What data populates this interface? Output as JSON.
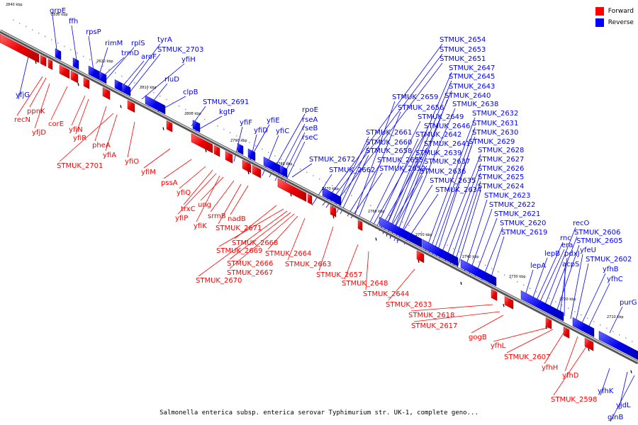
{
  "legend": {
    "forward_label": "Forward",
    "reverse_label": "Reverse",
    "forward_color": "#ff0000",
    "reverse_color": "#0000ff"
  },
  "caption": "Salmonella enterica subsp. enterica serovar Typhimurium str. UK-1, complete geno...",
  "ticks": [
    "2840 kbp",
    "2830 kbp",
    "2820 kbp",
    "2810 kbp",
    "2800 kbp",
    "2790 kbp",
    "2780 kbp",
    "2770 kbp",
    "2760 kbp",
    "2750 kbp",
    "2740 kbp",
    "2730 kbp",
    "2720 kbp",
    "2710 kbp"
  ],
  "reverse_genes": [
    "grpE",
    "ffh",
    "rpsP",
    "rimM",
    "trmD",
    "rplS",
    "aroF",
    "tyrA",
    "STMUK_2703",
    "yfiH",
    "rluD",
    "clpB",
    "STMUK_2691",
    "kgtP",
    "yfiF",
    "yfiE",
    "yfiD",
    "yfiC",
    "rpoE",
    "rseA",
    "rseB",
    "rseC",
    "STMUK_2672",
    "STMUK_2662",
    "STMUK_2654",
    "STMUK_2653",
    "STMUK_2651",
    "STMUK_2647",
    "STMUK_2645",
    "STMUK_2643",
    "STMUK_2640",
    "STMUK_2638",
    "STMUK_2659",
    "STMUK_2656",
    "STMUK_2649",
    "STMUK_2646",
    "STMUK_2642",
    "STMUK_2641",
    "STMUK_2639",
    "STMUK_2637",
    "STMUK_2636",
    "STMUK_2635",
    "STMUK_2634",
    "STMUK_2632",
    "STMUK_2631",
    "STMUK_2630",
    "STMUK_2629",
    "STMUK_2628",
    "STMUK_2627",
    "STMUK_2626",
    "STMUK_2625",
    "STMUK_2624",
    "STMUK_2623",
    "STMUK_2622",
    "STMUK_2621",
    "STMUK_2620",
    "STMUK_2619",
    "STMUK_2661",
    "STMUK_2660",
    "STMUK_2658",
    "STMUK_2655",
    "STMUK_2652",
    "lepA",
    "lepB",
    "rnc",
    "era",
    "recO",
    "STMUK_2606",
    "STMUK_2605",
    "pdxJ",
    "acpS",
    "yfeU",
    "STMUK_2602",
    "yfhB",
    "yfhC",
    "purG",
    "yfjG",
    "yfhK",
    "yjdL",
    "glnB"
  ],
  "forward_genes": [
    "ppnK",
    "recN",
    "yfjD",
    "corE",
    "yfiN",
    "yfiR",
    "pheA",
    "yfiA",
    "STMUK_2701",
    "yfiO",
    "yfiM",
    "pssA",
    "yfiQ",
    "trxC",
    "yfiP",
    "ung",
    "srmB",
    "yfiK",
    "nadB",
    "STMUK_2671",
    "STMUK_2668",
    "STMUK_2669",
    "STMUK_2666",
    "STMUK_2664",
    "STMUK_2667",
    "STMUK_2663",
    "STMUK_2670",
    "STMUK_2657",
    "STMUK_2648",
    "STMUK_2644",
    "STMUK_2633",
    "STMUK_2618",
    "STMUK_2617",
    "gogB",
    "yfhL",
    "STMUK_2607",
    "yfhH",
    "yfhD",
    "STMUK_2598"
  ]
}
